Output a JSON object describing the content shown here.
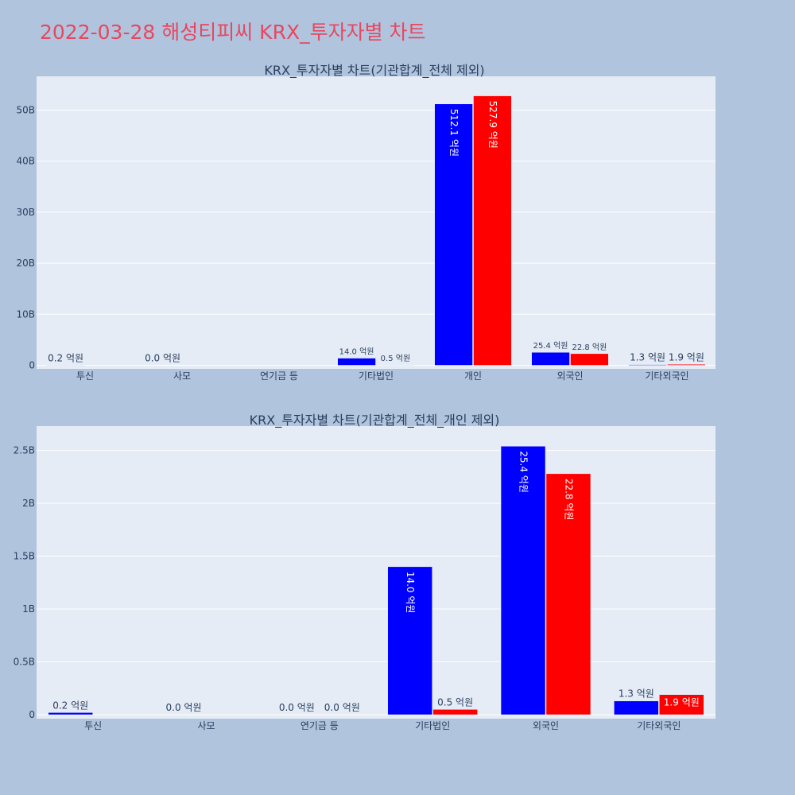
{
  "page_title": "2022-03-28 해성티피씨 KRX_투자자별 차트",
  "colors": {
    "background": "#b0c4de",
    "plot_background": "#e5ecf6",
    "title": "#e8475f",
    "buy": "#0000ff",
    "sell": "#ff0000"
  },
  "chart_data": [
    {
      "type": "bar",
      "title": "KRX_투자자별 차트(기관합계_전체 제외)",
      "categories": [
        "투신",
        "사모",
        "연기금 등",
        "기타법인",
        "개인",
        "외국인",
        "기타외국인"
      ],
      "series": [
        {
          "color": "#0000ff",
          "values": [
            20000000.0,
            0.0,
            0.0,
            1400000000.0,
            51210000000.0,
            2540000000.0,
            130000000.0
          ],
          "labels": [
            "0.2 억원",
            "0.0 억원",
            "",
            "14.0 억원",
            "512.1 억원",
            "25.4 억원",
            "1.3 억원"
          ]
        },
        {
          "color": "#ff0000",
          "values": [
            0.0,
            0.0,
            0.0,
            50000000.0,
            52790000000.0,
            2280000000.0,
            190000000.0
          ],
          "labels": [
            "",
            "",
            "",
            "0.5 억원",
            "527.9 억원",
            "22.8 억원",
            "1.9 억원"
          ]
        }
      ],
      "ylim": [
        0,
        56000000000
      ],
      "yticks": [
        0,
        10000000000,
        20000000000,
        30000000000,
        40000000000,
        50000000000
      ],
      "ytick_labels": [
        "0",
        "10B",
        "20B",
        "30B",
        "40B",
        "50B"
      ],
      "grid": true
    },
    {
      "type": "bar",
      "title": "KRX_투자자별 차트(기관합계_전체_개인 제외)",
      "categories": [
        "투신",
        "사모",
        "연기금 등",
        "기타법인",
        "외국인",
        "기타외국인"
      ],
      "series": [
        {
          "color": "#0000ff",
          "values": [
            20000000.0,
            0.0,
            0.0,
            1400000000.0,
            2540000000.0,
            130000000.0
          ],
          "labels": [
            "0.2 억원",
            "0.0 억원",
            "0.0 억원",
            "14.0 억원",
            "25.4 억원",
            "1.3 억원"
          ]
        },
        {
          "color": "#ff0000",
          "values": [
            0.0,
            0.0,
            0.0,
            50000000.0,
            2280000000.0,
            190000000.0
          ],
          "labels": [
            "",
            "",
            "0.0 억원",
            "0.5 억원",
            "22.8 억원",
            "1.9 억원"
          ]
        }
      ],
      "ylim": [
        0,
        2700000000
      ],
      "yticks": [
        0,
        500000000,
        1000000000,
        1500000000,
        2000000000,
        2500000000
      ],
      "ytick_labels": [
        "0",
        "0.5B",
        "1B",
        "1.5B",
        "2B",
        "2.5B"
      ],
      "grid": true
    }
  ]
}
